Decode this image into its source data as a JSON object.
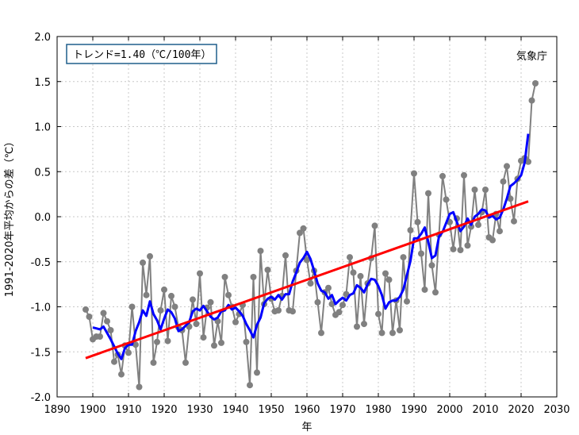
{
  "chart_data": {
    "type": "line",
    "title": "",
    "xlabel": "年",
    "ylabel": "1991-2020年平均からの差（℃）",
    "credit": "気象庁",
    "legend_box_text": "トレンド=1.40（℃/100年）",
    "xlim": [
      1890,
      2030
    ],
    "ylim": [
      -2.0,
      2.0
    ],
    "x_ticks": [
      1890,
      1900,
      1910,
      1920,
      1930,
      1940,
      1950,
      1960,
      1970,
      1980,
      1990,
      2000,
      2010,
      2020,
      2030
    ],
    "y_ticks": [
      -2.0,
      -1.5,
      -1.0,
      -0.5,
      0.0,
      0.5,
      1.0,
      1.5,
      2.0
    ],
    "y_tick_labels": [
      "-2.0",
      "-1.5",
      "-1.0",
      "-0.5",
      "0.0",
      "0.5",
      "1.0",
      "1.5",
      "2.0"
    ],
    "grid": true,
    "colors": {
      "annual": "#808080",
      "moving_avg": "#0000ff",
      "trend": "#ff0000",
      "legend_border": "#1f5f8b"
    },
    "series": [
      {
        "key": "annual",
        "x": [
          1898,
          1899,
          1900,
          1901,
          1902,
          1903,
          1904,
          1905,
          1906,
          1907,
          1908,
          1909,
          1910,
          1911,
          1912,
          1913,
          1914,
          1915,
          1916,
          1917,
          1918,
          1919,
          1920,
          1921,
          1922,
          1923,
          1924,
          1925,
          1926,
          1927,
          1928,
          1929,
          1930,
          1931,
          1932,
          1933,
          1934,
          1935,
          1936,
          1937,
          1938,
          1939,
          1940,
          1941,
          1942,
          1943,
          1944,
          1945,
          1946,
          1947,
          1948,
          1949,
          1950,
          1951,
          1952,
          1953,
          1954,
          1955,
          1956,
          1957,
          1958,
          1959,
          1960,
          1961,
          1962,
          1963,
          1964,
          1965,
          1966,
          1967,
          1968,
          1969,
          1970,
          1971,
          1972,
          1973,
          1974,
          1975,
          1976,
          1977,
          1978,
          1979,
          1980,
          1981,
          1982,
          1983,
          1984,
          1985,
          1986,
          1987,
          1988,
          1989,
          1990,
          1991,
          1992,
          1993,
          1994,
          1995,
          1996,
          1997,
          1998,
          1999,
          2000,
          2001,
          2002,
          2003,
          2004,
          2005,
          2006,
          2007,
          2008,
          2009,
          2010,
          2011,
          2012,
          2013,
          2014,
          2015,
          2016,
          2017,
          2018,
          2019,
          2020,
          2021,
          2022,
          2023,
          2024
        ],
        "values": [
          -1.03,
          -1.11,
          -1.36,
          -1.33,
          -1.33,
          -1.07,
          -1.16,
          -1.26,
          -1.61,
          -1.53,
          -1.75,
          -1.43,
          -1.51,
          -1.0,
          -1.42,
          -1.89,
          -0.51,
          -0.87,
          -0.44,
          -1.62,
          -1.39,
          -1.04,
          -0.81,
          -1.38,
          -0.88,
          -1.0,
          -1.23,
          -1.26,
          -1.62,
          -1.22,
          -0.92,
          -1.19,
          -0.63,
          -1.34,
          -1.01,
          -0.95,
          -1.43,
          -1.16,
          -1.4,
          -0.67,
          -0.87,
          -1.0,
          -1.17,
          -1.08,
          -0.98,
          -1.39,
          -1.87,
          -0.67,
          -1.73,
          -0.38,
          -0.97,
          -0.59,
          -0.91,
          -1.05,
          -1.04,
          -0.88,
          -0.43,
          -1.04,
          -1.05,
          -0.6,
          -0.18,
          -0.13,
          -0.48,
          -0.74,
          -0.6,
          -0.95,
          -1.29,
          -0.84,
          -0.79,
          -0.97,
          -1.09,
          -1.06,
          -0.98,
          -0.86,
          -0.45,
          -0.62,
          -1.22,
          -0.66,
          -1.19,
          -0.74,
          -0.46,
          -0.1,
          -1.08,
          -1.29,
          -0.63,
          -0.7,
          -1.29,
          -0.93,
          -1.26,
          -0.45,
          -0.94,
          -0.15,
          0.48,
          -0.06,
          -0.41,
          -0.81,
          0.26,
          -0.54,
          -0.84,
          -0.2,
          0.45,
          0.19,
          -0.06,
          -0.36,
          -0.02,
          -0.37,
          0.46,
          -0.32,
          -0.11,
          0.3,
          -0.09,
          0.05,
          0.3,
          -0.23,
          -0.26,
          0.03,
          -0.16,
          0.39,
          0.56,
          0.2,
          -0.05,
          0.42,
          0.62,
          0.65,
          0.61,
          1.29,
          1.48
        ]
      },
      {
        "key": "moving_avg",
        "x": [
          1900,
          1901,
          1902,
          1903,
          1904,
          1905,
          1906,
          1907,
          1908,
          1909,
          1910,
          1911,
          1912,
          1913,
          1914,
          1915,
          1916,
          1917,
          1918,
          1919,
          1920,
          1921,
          1922,
          1923,
          1924,
          1925,
          1926,
          1927,
          1928,
          1929,
          1930,
          1931,
          1932,
          1933,
          1934,
          1935,
          1936,
          1937,
          1938,
          1939,
          1940,
          1941,
          1942,
          1943,
          1944,
          1945,
          1946,
          1947,
          1948,
          1949,
          1950,
          1951,
          1952,
          1953,
          1954,
          1955,
          1956,
          1957,
          1958,
          1959,
          1960,
          1961,
          1962,
          1963,
          1964,
          1965,
          1966,
          1967,
          1968,
          1969,
          1970,
          1971,
          1972,
          1973,
          1974,
          1975,
          1976,
          1977,
          1978,
          1979,
          1980,
          1981,
          1982,
          1983,
          1984,
          1985,
          1986,
          1987,
          1988,
          1989,
          1990,
          1991,
          1992,
          1993,
          1994,
          1995,
          1996,
          1997,
          1998,
          1999,
          2000,
          2001,
          2002,
          2003,
          2004,
          2005,
          2006,
          2007,
          2008,
          2009,
          2010,
          2011,
          2012,
          2013,
          2014,
          2015,
          2016,
          2017,
          2018,
          2019,
          2020,
          2021,
          2022
        ],
        "values": [
          -1.23,
          -1.24,
          -1.25,
          -1.22,
          -1.29,
          -1.36,
          -1.44,
          -1.52,
          -1.58,
          -1.46,
          -1.42,
          -1.42,
          -1.27,
          -1.17,
          -1.04,
          -1.1,
          -0.94,
          -1.08,
          -1.15,
          -1.25,
          -1.13,
          -1.03,
          -1.06,
          -1.13,
          -1.27,
          -1.25,
          -1.21,
          -1.17,
          -1.05,
          -1.02,
          -1.04,
          -0.99,
          -1.05,
          -1.11,
          -1.14,
          -1.12,
          -1.05,
          -1.04,
          -0.98,
          -1.03,
          -1.01,
          -1.05,
          -1.1,
          -1.19,
          -1.26,
          -1.34,
          -1.2,
          -1.12,
          -0.96,
          -0.91,
          -0.89,
          -0.92,
          -0.87,
          -0.92,
          -0.86,
          -0.86,
          -0.72,
          -0.62,
          -0.51,
          -0.46,
          -0.39,
          -0.47,
          -0.6,
          -0.74,
          -0.82,
          -0.84,
          -0.91,
          -0.87,
          -0.97,
          -0.93,
          -0.9,
          -0.93,
          -0.87,
          -0.85,
          -0.76,
          -0.79,
          -0.84,
          -0.75,
          -0.69,
          -0.7,
          -0.77,
          -0.87,
          -1.02,
          -0.95,
          -0.93,
          -0.93,
          -0.89,
          -0.81,
          -0.65,
          -0.49,
          -0.24,
          -0.24,
          -0.19,
          -0.12,
          -0.28,
          -0.46,
          -0.43,
          -0.22,
          -0.17,
          -0.07,
          0.03,
          0.05,
          -0.06,
          -0.16,
          -0.11,
          -0.02,
          -0.09,
          0.0,
          0.03,
          0.08,
          0.07,
          -0.01,
          0.01,
          -0.03,
          -0.01,
          0.08,
          0.2,
          0.34,
          0.37,
          0.41,
          0.46,
          0.6,
          0.92
        ]
      },
      {
        "key": "trend",
        "x": [
          1898,
          2022
        ],
        "values": [
          -1.57,
          0.17
        ]
      }
    ]
  }
}
